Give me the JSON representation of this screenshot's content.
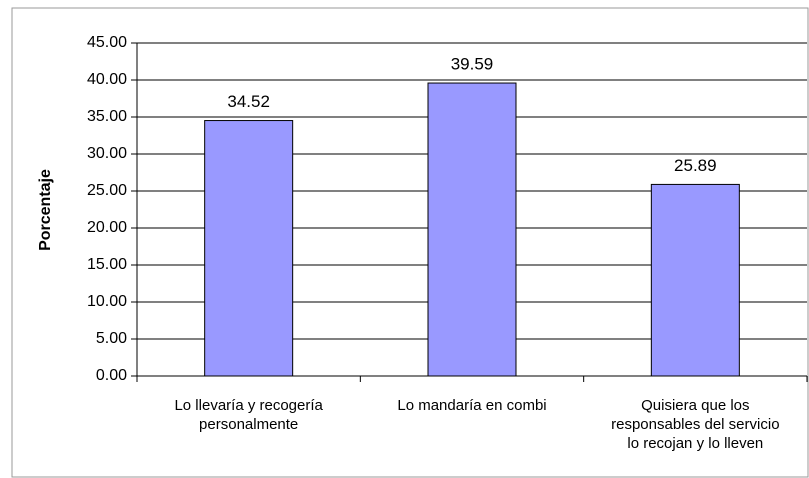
{
  "chart_data": {
    "type": "bar",
    "ylabel": "Porcentaje",
    "categories": [
      [
        "Lo llevaría y recogería",
        "personalmente"
      ],
      [
        "Lo mandaría en combi"
      ],
      [
        "Quisiera que los",
        "responsables del servicio",
        "lo recojan y lo lleven"
      ]
    ],
    "values": [
      34.52,
      39.59,
      25.89
    ],
    "color": "#9999ff",
    "ylim": [
      0,
      45
    ],
    "yticks": [
      {
        "value": 0,
        "label": "0.00"
      },
      {
        "value": 5,
        "label": "5.00"
      },
      {
        "value": 10,
        "label": "10.00"
      },
      {
        "value": 15,
        "label": "15.00"
      },
      {
        "value": 20,
        "label": "20.00"
      },
      {
        "value": 25,
        "label": "25.00"
      },
      {
        "value": 30,
        "label": "30.00"
      },
      {
        "value": 35,
        "label": "35.00"
      },
      {
        "value": 40,
        "label": "40.00"
      },
      {
        "value": 45,
        "label": "45.00"
      }
    ],
    "grid": true
  }
}
